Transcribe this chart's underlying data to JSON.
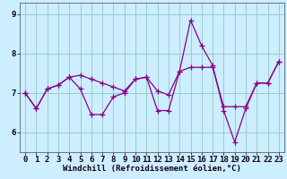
{
  "xlabel": "Windchill (Refroidissement éolien,°C)",
  "background_color": "#cceeff",
  "grid_color": "#99cccc",
  "line_color": "#880088",
  "xlim": [
    -0.5,
    23.5
  ],
  "ylim": [
    5.5,
    9.3
  ],
  "yticks": [
    6,
    7,
    8,
    9
  ],
  "xticks": [
    0,
    1,
    2,
    3,
    4,
    5,
    6,
    7,
    8,
    9,
    10,
    11,
    12,
    13,
    14,
    15,
    16,
    17,
    18,
    19,
    20,
    21,
    22,
    23
  ],
  "series1": [
    7.0,
    6.6,
    7.1,
    7.2,
    7.4,
    7.45,
    7.35,
    7.25,
    7.15,
    7.05,
    7.35,
    7.4,
    7.05,
    6.95,
    7.55,
    7.65,
    7.65,
    7.65,
    6.65,
    6.65,
    6.65,
    7.25,
    7.25,
    7.8
  ],
  "series2": [
    7.0,
    6.6,
    7.1,
    7.2,
    7.4,
    7.1,
    6.45,
    6.45,
    6.9,
    7.0,
    7.35,
    7.4,
    6.55,
    6.55,
    7.55,
    8.85,
    8.2,
    7.7,
    6.55,
    5.75,
    6.6,
    7.25,
    7.25,
    7.8
  ],
  "marker": "+",
  "markersize": 4,
  "linewidth": 0.9,
  "xlabel_fontsize": 6.5,
  "tick_fontsize": 6.5
}
